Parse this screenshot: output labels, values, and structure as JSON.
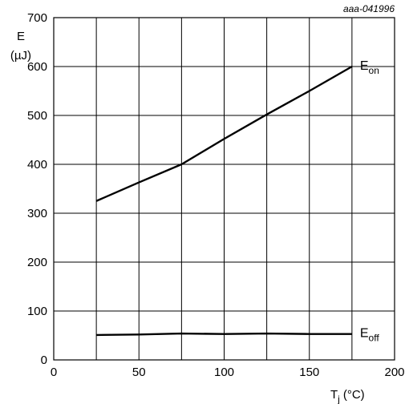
{
  "chart_data": {
    "type": "line",
    "figure_id": "aaa-041996",
    "ylabel": "E",
    "yunit": "(µJ)",
    "xlabel_main": "T",
    "xlabel_sub": "j",
    "xlabel_unit": "(°C)",
    "xlim": [
      0,
      200
    ],
    "ylim": [
      0,
      700
    ],
    "xticks": [
      0,
      50,
      100,
      150,
      200
    ],
    "yticks": [
      0,
      100,
      200,
      300,
      400,
      500,
      600,
      700
    ],
    "xgrid": [
      25,
      50,
      75,
      100,
      125,
      150,
      175
    ],
    "grid": true,
    "series": [
      {
        "name": "Eon",
        "label_main": "E",
        "label_sub": "on",
        "x": [
          25,
          50,
          75,
          100,
          125,
          150,
          175
        ],
        "y": [
          325,
          363,
          400,
          452,
          502,
          550,
          600
        ]
      },
      {
        "name": "Eoff",
        "label_main": "E",
        "label_sub": "off",
        "x": [
          25,
          50,
          75,
          100,
          125,
          150,
          175
        ],
        "y": [
          51,
          52,
          54,
          53,
          54,
          53,
          53
        ]
      }
    ]
  }
}
